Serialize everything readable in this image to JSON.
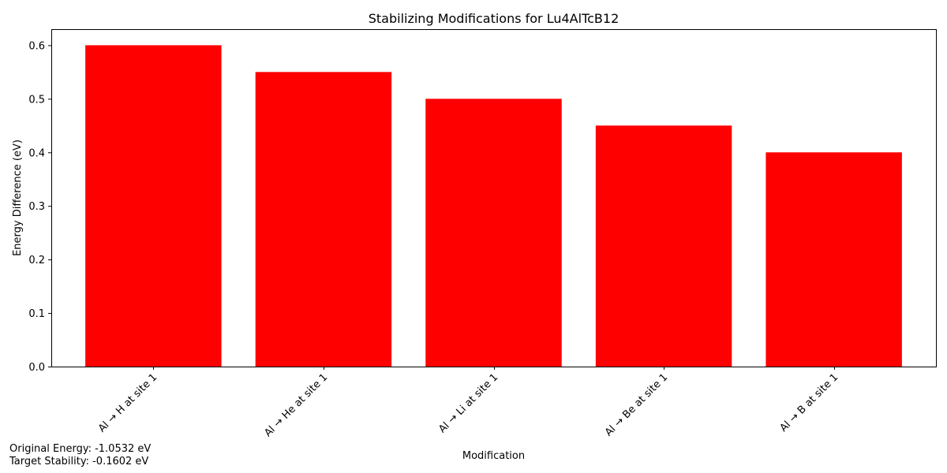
{
  "chart_data": {
    "type": "bar",
    "title": "Stabilizing Modifications for Lu4AlTcB12",
    "xlabel": "Modification",
    "ylabel": "Energy Difference (eV)",
    "categories": [
      "Al → H at site 1",
      "Al → He at site 1",
      "Al → Li at site 1",
      "Al → Be at site 1",
      "Al → B at site 1"
    ],
    "values": [
      0.6,
      0.55,
      0.5,
      0.45,
      0.4
    ],
    "ylim": [
      0,
      0.63
    ],
    "yticks": [
      0.0,
      0.1,
      0.2,
      0.3,
      0.4,
      0.5,
      0.6
    ],
    "ytick_labels": [
      "0.0",
      "0.1",
      "0.2",
      "0.3",
      "0.4",
      "0.5",
      "0.6"
    ],
    "bar_color": "#ff0000",
    "grid": false,
    "legend": "none"
  },
  "annotations": {
    "original_energy": "Original Energy: -1.0532 eV",
    "target_stability": "Target Stability: -0.1602 eV"
  }
}
